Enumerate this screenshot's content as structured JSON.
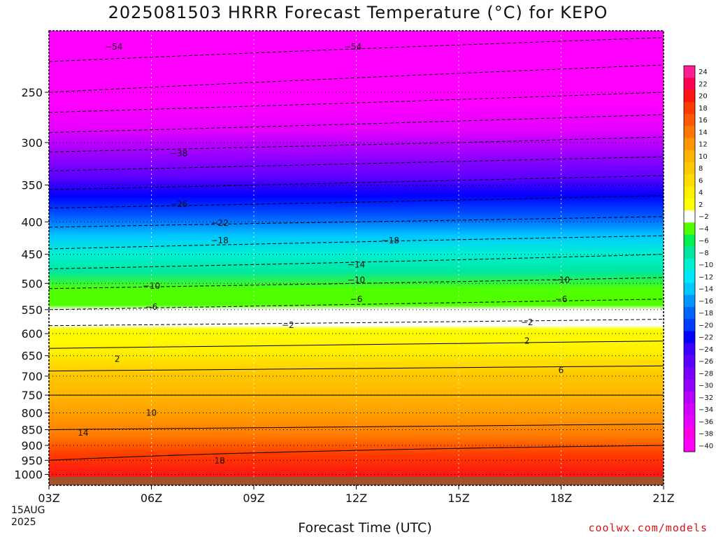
{
  "title": "2025081503 HRRR Forecast Temperature (°C) for KEPO",
  "credit": "coolwx.com/models",
  "chart_data": {
    "type": "heatmap",
    "title": "2025081503 HRRR Forecast Temperature (°C) for KEPO",
    "xlabel": "Forecast Time (UTC)",
    "ylabel": "",
    "x_ticks": [
      "03Z",
      "06Z",
      "09Z",
      "12Z",
      "15Z",
      "18Z",
      "21Z"
    ],
    "x_hours": [
      3,
      6,
      9,
      12,
      15,
      18,
      21
    ],
    "x_start_date": [
      "15AUG",
      "2025"
    ],
    "y_ticks": [
      250,
      300,
      350,
      400,
      450,
      500,
      550,
      600,
      650,
      700,
      750,
      800,
      850,
      900,
      950,
      1000
    ],
    "y_scale": "log",
    "y_range": [
      200,
      1040
    ],
    "grid": true,
    "colorbar": {
      "labels": [
        "24",
        "22",
        "20",
        "18",
        "16",
        "14",
        "12",
        "10",
        "8",
        "6",
        "4",
        "2",
        "−2",
        "−4",
        "−6",
        "−8",
        "−10",
        "−12",
        "−14",
        "−16",
        "−18",
        "−20",
        "−22",
        "−24",
        "−26",
        "−28",
        "−30",
        "−32",
        "−34",
        "−36",
        "−38",
        "−40"
      ],
      "colors": [
        "#ff1e96",
        "#ff0050",
        "#ff1414",
        "#ff3c00",
        "#ff5a00",
        "#ff7800",
        "#ff9600",
        "#ffb400",
        "#ffc800",
        "#ffdc00",
        "#fff000",
        "#ffff00",
        "#ffffff",
        "#50ff00",
        "#00f050",
        "#00e6a0",
        "#00f0d2",
        "#00e6ff",
        "#00c8ff",
        "#0096ff",
        "#0064ff",
        "#003cff",
        "#0000ff",
        "#3c00ff",
        "#5a00ff",
        "#7800ff",
        "#9600ff",
        "#b400ff",
        "#d200ff",
        "#e600ff",
        "#ff00e6",
        "#ff00ff"
      ]
    },
    "temperature_profile": {
      "levels": [
        200,
        250,
        300,
        350,
        400,
        450,
        500,
        550,
        600,
        650,
        700,
        750,
        800,
        850,
        900,
        950,
        1000
      ],
      "temps_03z": [
        -58,
        -50,
        -40,
        -31,
        -23,
        -17,
        -11,
        -6,
        0,
        3,
        7,
        10,
        11,
        14,
        17,
        18,
        19
      ],
      "temps_21z": [
        -55,
        -46,
        -37,
        -28,
        -21,
        -14,
        -9,
        -4,
        1,
        4,
        8,
        10,
        12,
        15,
        18,
        20,
        21
      ]
    },
    "contour_labels": [
      {
        "text": "−54",
        "hour": 4.9,
        "p": 212
      },
      {
        "text": "−54",
        "hour": 11.9,
        "p": 212
      },
      {
        "text": "−38",
        "hour": 6.8,
        "p": 312
      },
      {
        "text": "−26",
        "hour": 6.8,
        "p": 375
      },
      {
        "text": "−22",
        "hour": 8.0,
        "p": 402
      },
      {
        "text": "−18",
        "hour": 8.0,
        "p": 428
      },
      {
        "text": "−18",
        "hour": 13.0,
        "p": 428
      },
      {
        "text": "−14",
        "hour": 12.0,
        "p": 467
      },
      {
        "text": "−10",
        "hour": 6.0,
        "p": 505
      },
      {
        "text": "−10",
        "hour": 12.0,
        "p": 494
      },
      {
        "text": "−10",
        "hour": 18.0,
        "p": 494
      },
      {
        "text": "−6",
        "hour": 6.0,
        "p": 545
      },
      {
        "text": "−6",
        "hour": 12.0,
        "p": 530
      },
      {
        "text": "−6",
        "hour": 18.0,
        "p": 530
      },
      {
        "text": "−2",
        "hour": 10.0,
        "p": 582
      },
      {
        "text": "−2",
        "hour": 17.0,
        "p": 576
      },
      {
        "text": "2",
        "hour": 5.0,
        "p": 658
      },
      {
        "text": "2",
        "hour": 17.0,
        "p": 616
      },
      {
        "text": "6",
        "hour": 18.0,
        "p": 685
      },
      {
        "text": "10",
        "hour": 6.0,
        "p": 800
      },
      {
        "text": "14",
        "hour": 4.0,
        "p": 860
      },
      {
        "text": "18",
        "hour": 8.0,
        "p": 952
      }
    ]
  }
}
